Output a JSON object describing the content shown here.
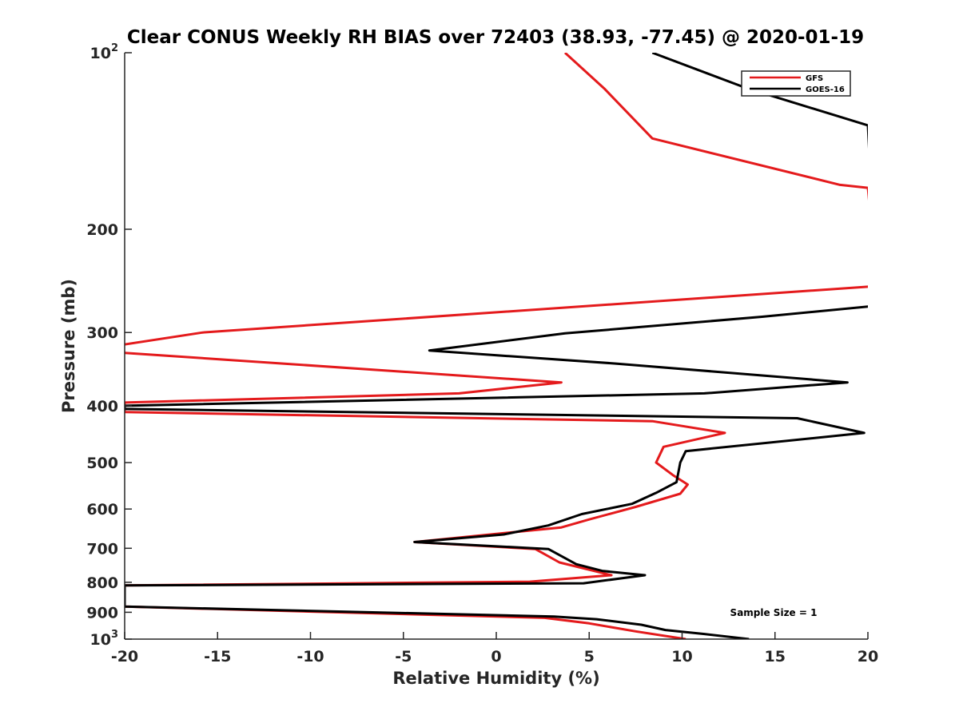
{
  "chart_data": {
    "type": "line",
    "title": "Clear CONUS Weekly RH BIAS over 72403 (38.93, -77.45) @ 2020-01-19",
    "xlabel": "Relative Humidity (%)",
    "ylabel": "Pressure (mb)",
    "xlim": [
      -20,
      20
    ],
    "ylim": [
      100,
      1000
    ],
    "y_scale": "log",
    "y_reversed": true,
    "grid": false,
    "legend_position": "top-right",
    "x_ticks": [
      -20,
      -15,
      -10,
      -5,
      0,
      5,
      10,
      15,
      20
    ],
    "x_tick_labels": [
      "-20",
      "-15",
      "-10",
      "-5",
      "0",
      "5",
      "10",
      "15",
      "20"
    ],
    "y_ticks": [
      100,
      200,
      300,
      400,
      500,
      600,
      700,
      800,
      900,
      1000
    ],
    "y_tick_labels": [
      {
        "base": "10",
        "sup": "2"
      },
      {
        "base": "200",
        "sup": ""
      },
      {
        "base": "300",
        "sup": ""
      },
      {
        "base": "400",
        "sup": ""
      },
      {
        "base": "500",
        "sup": ""
      },
      {
        "base": "600",
        "sup": ""
      },
      {
        "base": "700",
        "sup": ""
      },
      {
        "base": "800",
        "sup": ""
      },
      {
        "base": "900",
        "sup": ""
      },
      {
        "base": "10",
        "sup": "3"
      }
    ],
    "annotation": "Sample Size = 1",
    "series": [
      {
        "name": "GFS",
        "color": "#e41a1c",
        "points": [
          [
            3.7,
            100
          ],
          [
            5.8,
            115
          ],
          [
            8.4,
            140
          ],
          [
            18.5,
            168
          ],
          [
            20.0,
            170
          ],
          [
            20.5,
            250
          ],
          [
            -15.8,
            300
          ],
          [
            -20.2,
            315
          ],
          [
            -20.0,
            325
          ],
          [
            3.5,
            365
          ],
          [
            -2.0,
            381
          ],
          [
            -20.0,
            395
          ],
          [
            -20.0,
            410
          ],
          [
            8.4,
            425
          ],
          [
            12.3,
            445
          ],
          [
            9.0,
            470
          ],
          [
            8.6,
            500
          ],
          [
            9.5,
            525
          ],
          [
            10.3,
            545
          ],
          [
            9.9,
            565
          ],
          [
            7.5,
            595
          ],
          [
            5.0,
            625
          ],
          [
            3.5,
            645
          ],
          [
            -4.4,
            683
          ],
          [
            2.1,
            702
          ],
          [
            3.4,
            740
          ],
          [
            6.2,
            778
          ],
          [
            1.8,
            798
          ],
          [
            -20.0,
            810
          ],
          [
            -20.0,
            880
          ],
          [
            2.6,
            920
          ],
          [
            5.0,
            940
          ],
          [
            7.5,
            970
          ],
          [
            10.2,
            1000
          ]
        ]
      },
      {
        "name": "GOES-16",
        "color": "#000000",
        "points": [
          [
            8.4,
            100
          ],
          [
            13.5,
            115
          ],
          [
            20.0,
            133
          ],
          [
            20.5,
            270
          ],
          [
            14.3,
            282
          ],
          [
            3.7,
            301
          ],
          [
            -3.6,
            322
          ],
          [
            6.5,
            339
          ],
          [
            18.9,
            365
          ],
          [
            11.2,
            381
          ],
          [
            -20.0,
            400
          ],
          [
            -20.0,
            405
          ],
          [
            16.2,
            420
          ],
          [
            19.8,
            445
          ],
          [
            10.2,
            478
          ],
          [
            9.9,
            500
          ],
          [
            9.7,
            540
          ],
          [
            8.6,
            563
          ],
          [
            7.3,
            588
          ],
          [
            4.6,
            612
          ],
          [
            2.8,
            640
          ],
          [
            0.4,
            663
          ],
          [
            -4.4,
            683
          ],
          [
            2.8,
            702
          ],
          [
            4.3,
            745
          ],
          [
            5.7,
            765
          ],
          [
            8.0,
            778
          ],
          [
            4.7,
            803
          ],
          [
            -20.0,
            810
          ],
          [
            -20.0,
            880
          ],
          [
            3.1,
            915
          ],
          [
            5.4,
            925
          ],
          [
            7.8,
            945
          ],
          [
            9.1,
            965
          ],
          [
            11.2,
            980
          ],
          [
            13.6,
            1000
          ]
        ]
      }
    ]
  }
}
